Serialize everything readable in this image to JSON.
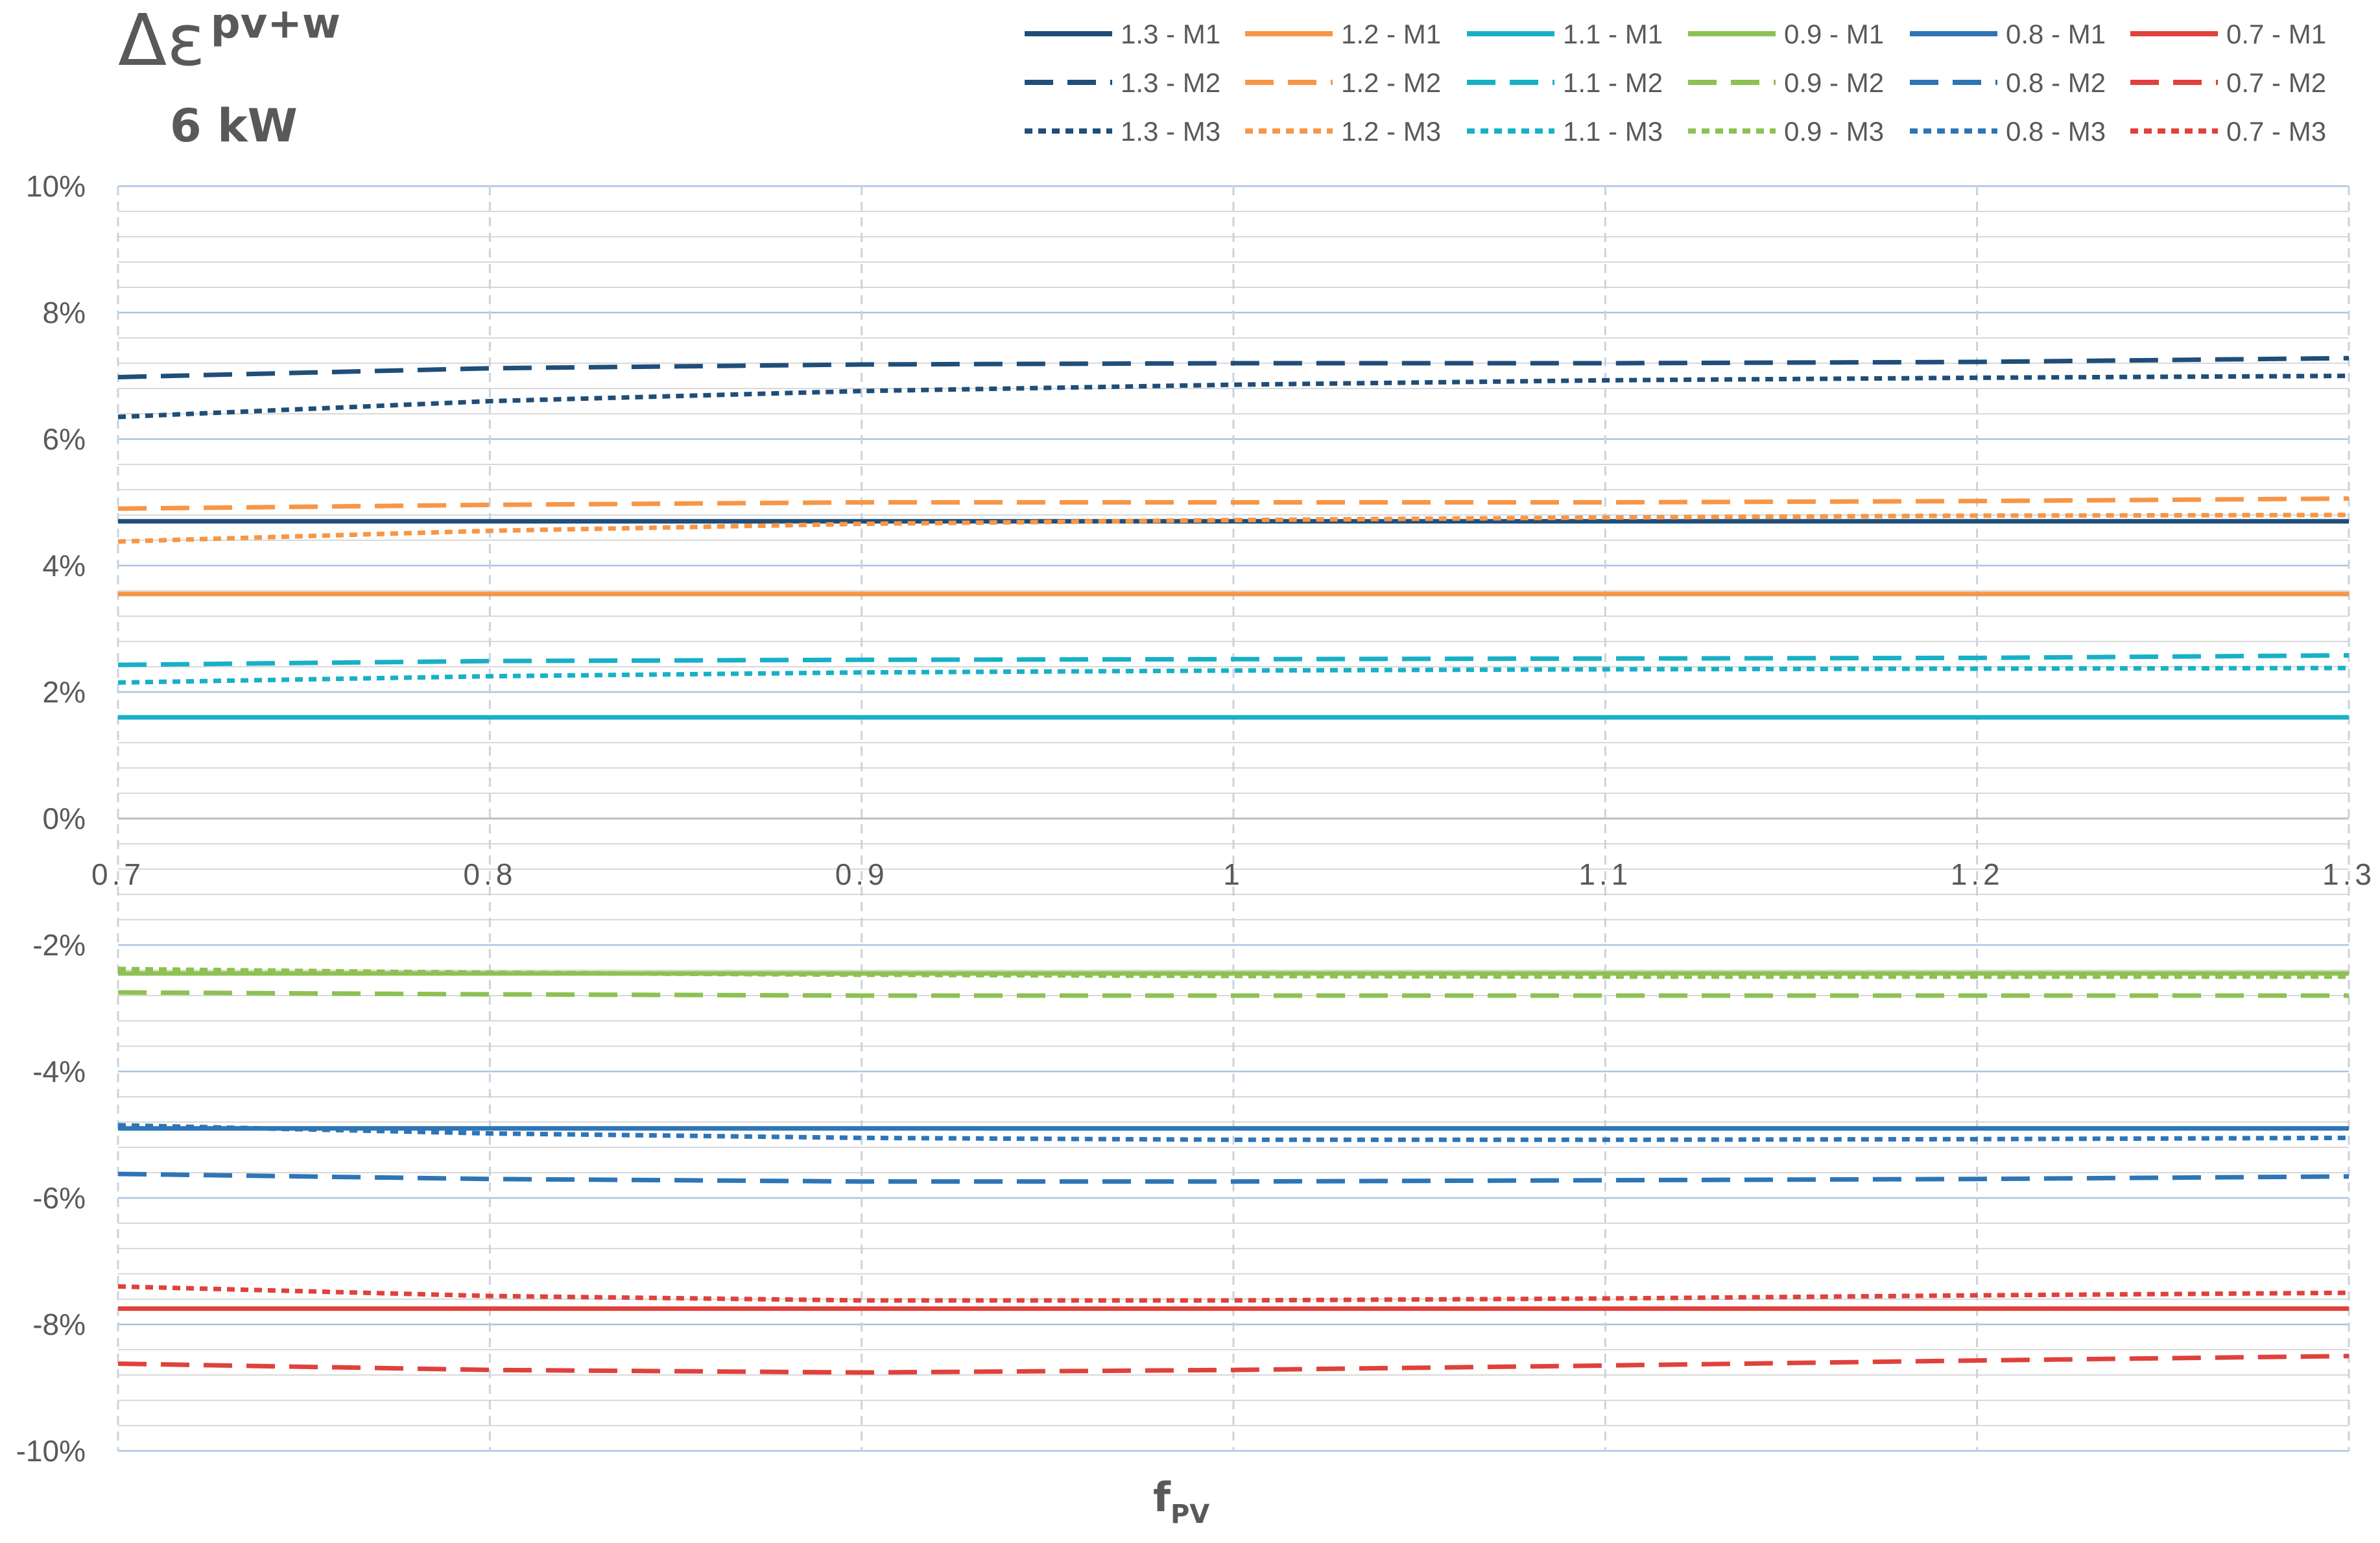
{
  "chart_data": {
    "type": "line",
    "title": "Δε",
    "title_superscript": "pv+w",
    "subtitle": "6 kW",
    "xlabel": "f",
    "xlabel_subscript": "PV",
    "ylabel": "",
    "x": [
      0.7,
      0.8,
      0.9,
      1.0,
      1.1,
      1.2,
      1.3
    ],
    "x_tick_labels": [
      "0.7",
      "0.8",
      "0.9",
      "1",
      "1.1",
      "1.2",
      "1.3"
    ],
    "xlim": [
      0.7,
      1.3
    ],
    "ylim": [
      -10,
      10
    ],
    "y_unit": "%",
    "y_ticks": [
      10,
      8,
      6,
      4,
      2,
      0,
      -2,
      -4,
      -6,
      -8,
      -10
    ],
    "y_tick_labels": [
      "10%",
      "8%",
      "6%",
      "4%",
      "2%",
      "0%",
      "-2%",
      "-4%",
      "-6%",
      "-8%",
      "-10%"
    ],
    "grid": "on",
    "legend_position": "top-right",
    "series": [
      {
        "name": "1.3 - M1",
        "color": "#1F4E79",
        "dash": "solid",
        "values": [
          4.7,
          4.7,
          4.7,
          4.7,
          4.7,
          4.7,
          4.7
        ]
      },
      {
        "name": "1.2 - M1",
        "color": "#F79646",
        "dash": "solid",
        "values": [
          3.55,
          3.55,
          3.55,
          3.55,
          3.55,
          3.55,
          3.55
        ]
      },
      {
        "name": "1.1 - M1",
        "color": "#17B1C7",
        "dash": "solid",
        "values": [
          1.6,
          1.6,
          1.6,
          1.6,
          1.6,
          1.6,
          1.6
        ]
      },
      {
        "name": "0.9 - M1",
        "color": "#8DC152",
        "dash": "solid",
        "values": [
          -2.45,
          -2.45,
          -2.45,
          -2.45,
          -2.45,
          -2.45,
          -2.45
        ]
      },
      {
        "name": "0.8 - M1",
        "color": "#2E75B6",
        "dash": "solid",
        "values": [
          -4.9,
          -4.9,
          -4.9,
          -4.9,
          -4.9,
          -4.9,
          -4.9
        ]
      },
      {
        "name": "0.7 - M1",
        "color": "#E0413C",
        "dash": "solid",
        "values": [
          -7.75,
          -7.75,
          -7.75,
          -7.75,
          -7.75,
          -7.75,
          -7.75
        ]
      },
      {
        "name": "1.3 - M2",
        "color": "#1F4E79",
        "dash": "dashed",
        "values": [
          6.98,
          7.12,
          7.18,
          7.2,
          7.2,
          7.22,
          7.28
        ]
      },
      {
        "name": "1.2 - M2",
        "color": "#F79646",
        "dash": "dashed",
        "values": [
          4.9,
          4.96,
          5.0,
          5.0,
          5.0,
          5.02,
          5.06
        ]
      },
      {
        "name": "1.1 - M2",
        "color": "#17B1C7",
        "dash": "dashed",
        "values": [
          2.43,
          2.49,
          2.51,
          2.52,
          2.53,
          2.54,
          2.58
        ]
      },
      {
        "name": "0.9 - M2",
        "color": "#8DC152",
        "dash": "dashed",
        "values": [
          -2.75,
          -2.78,
          -2.8,
          -2.8,
          -2.8,
          -2.8,
          -2.8
        ]
      },
      {
        "name": "0.8 - M2",
        "color": "#2E75B6",
        "dash": "dashed",
        "values": [
          -5.62,
          -5.7,
          -5.74,
          -5.74,
          -5.72,
          -5.7,
          -5.66
        ]
      },
      {
        "name": "0.7 - M2",
        "color": "#E0413C",
        "dash": "dashed",
        "values": [
          -8.62,
          -8.72,
          -8.76,
          -8.72,
          -8.65,
          -8.57,
          -8.5
        ]
      },
      {
        "name": "1.3 - M3",
        "color": "#1F4E79",
        "dash": "dotted",
        "values": [
          6.35,
          6.6,
          6.76,
          6.86,
          6.93,
          6.97,
          7.0
        ]
      },
      {
        "name": "1.2 - M3",
        "color": "#F79646",
        "dash": "dotted",
        "values": [
          4.38,
          4.55,
          4.66,
          4.72,
          4.76,
          4.79,
          4.8
        ]
      },
      {
        "name": "1.1 - M3",
        "color": "#17B1C7",
        "dash": "dotted",
        "values": [
          2.15,
          2.25,
          2.31,
          2.34,
          2.36,
          2.37,
          2.38
        ]
      },
      {
        "name": "0.9 - M3",
        "color": "#8DC152",
        "dash": "dotted",
        "values": [
          -2.38,
          -2.44,
          -2.47,
          -2.49,
          -2.5,
          -2.5,
          -2.5
        ]
      },
      {
        "name": "0.8 - M3",
        "color": "#2E75B6",
        "dash": "dotted",
        "values": [
          -4.85,
          -4.98,
          -5.05,
          -5.08,
          -5.08,
          -5.07,
          -5.05
        ]
      },
      {
        "name": "0.7 - M3",
        "color": "#E0413C",
        "dash": "dotted",
        "values": [
          -7.4,
          -7.55,
          -7.62,
          -7.62,
          -7.59,
          -7.54,
          -7.5
        ]
      }
    ]
  }
}
